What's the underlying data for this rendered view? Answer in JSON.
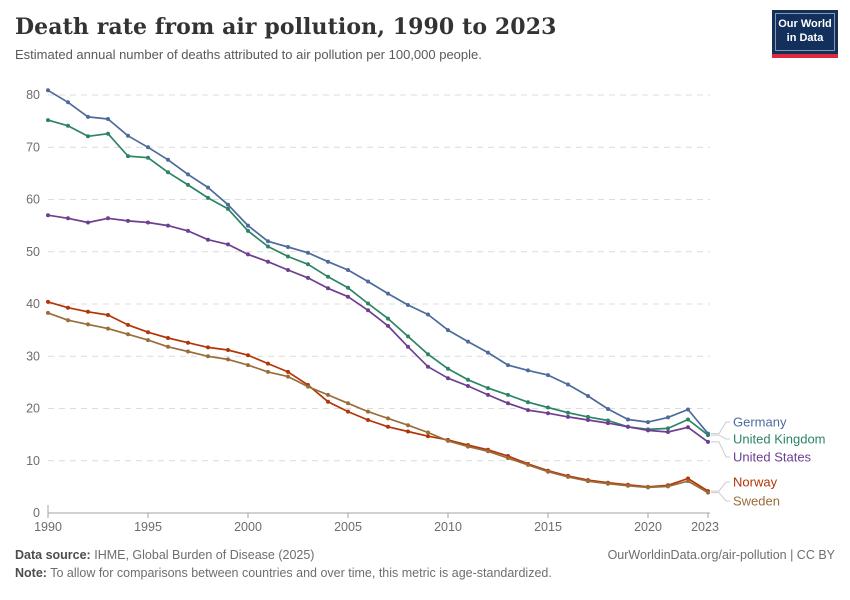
{
  "header": {
    "title": "Death rate from air pollution, 1990 to 2023",
    "subtitle": "Estimated annual number of deaths attributed to air pollution per 100,000 people.",
    "logo": {
      "line1": "Our World",
      "line2": "in Data"
    }
  },
  "chart_data": {
    "type": "line",
    "title": "Death rate from air pollution, 1990 to 2023",
    "xlabel": "",
    "ylabel": "",
    "ylim": [
      0,
      80
    ],
    "yticks": [
      0,
      10,
      20,
      30,
      40,
      50,
      60,
      70,
      80
    ],
    "xticks": [
      1990,
      1995,
      2000,
      2005,
      2010,
      2015,
      2020,
      2023
    ],
    "grid": "horizontal-dashed",
    "legend_position": "right-of-line-endpoints",
    "x": [
      1990,
      1991,
      1992,
      1993,
      1994,
      1995,
      1996,
      1997,
      1998,
      1999,
      2000,
      2001,
      2002,
      2003,
      2004,
      2005,
      2006,
      2007,
      2008,
      2009,
      2010,
      2011,
      2012,
      2013,
      2014,
      2015,
      2016,
      2017,
      2018,
      2019,
      2020,
      2021,
      2022,
      2023
    ],
    "series": [
      {
        "name": "Germany",
        "color": "#4C6A9C",
        "values": [
          80.9,
          78.6,
          75.8,
          75.4,
          72.2,
          70.0,
          67.6,
          64.8,
          62.3,
          59.0,
          55.0,
          52.0,
          50.9,
          49.8,
          48.1,
          46.5,
          44.3,
          42.0,
          39.8,
          38.0,
          35.0,
          32.8,
          30.7,
          28.3,
          27.3,
          26.4,
          24.6,
          22.4,
          19.9,
          17.9,
          17.4,
          18.3,
          19.8,
          15.2
        ]
      },
      {
        "name": "United Kingdom",
        "color": "#2C8465",
        "values": [
          75.2,
          74.1,
          72.1,
          72.6,
          68.3,
          68.0,
          65.2,
          62.8,
          60.3,
          58.2,
          54.0,
          51.0,
          49.1,
          47.6,
          45.2,
          43.1,
          40.1,
          37.2,
          33.8,
          30.4,
          27.6,
          25.5,
          23.9,
          22.6,
          21.2,
          20.2,
          19.2,
          18.4,
          17.7,
          16.5,
          16.0,
          16.2,
          17.9,
          14.9
        ]
      },
      {
        "name": "United States",
        "color": "#6D3E91",
        "values": [
          57.0,
          56.4,
          55.6,
          56.4,
          55.9,
          55.6,
          55.0,
          54.0,
          52.3,
          51.4,
          49.5,
          48.1,
          46.5,
          45.0,
          43.0,
          41.4,
          38.8,
          35.8,
          31.8,
          28.0,
          25.8,
          24.3,
          22.6,
          21.0,
          19.7,
          19.1,
          18.4,
          17.8,
          17.2,
          16.5,
          15.8,
          15.5,
          16.4,
          13.6
        ]
      },
      {
        "name": "Norway",
        "color": "#B13507",
        "values": [
          40.4,
          39.3,
          38.5,
          37.9,
          36.0,
          34.6,
          33.5,
          32.6,
          31.7,
          31.2,
          30.2,
          28.6,
          27.0,
          24.5,
          21.3,
          19.4,
          17.8,
          16.5,
          15.6,
          14.7,
          14.0,
          13.0,
          12.1,
          10.9,
          9.4,
          8.1,
          7.1,
          6.3,
          5.8,
          5.4,
          5.0,
          5.3,
          6.6,
          4.2
        ]
      },
      {
        "name": "Sweden",
        "color": "#996D39",
        "values": [
          38.3,
          36.9,
          36.1,
          35.3,
          34.2,
          33.1,
          31.8,
          30.9,
          30.0,
          29.4,
          28.3,
          27.0,
          26.1,
          24.2,
          22.6,
          21.0,
          19.4,
          18.1,
          16.8,
          15.4,
          13.8,
          12.7,
          11.8,
          10.5,
          9.2,
          7.9,
          6.9,
          6.1,
          5.6,
          5.2,
          4.9,
          5.1,
          6.1,
          3.9
        ]
      }
    ]
  },
  "footer": {
    "source_label": "Data source:",
    "source_text": "IHME, Global Burden of Disease (2025)",
    "attribution": "OurWorldinData.org/air-pollution | CC BY",
    "note_label": "Note:",
    "note_text": "To allow for comparisons between countries and over time, this metric is age-standardized."
  }
}
